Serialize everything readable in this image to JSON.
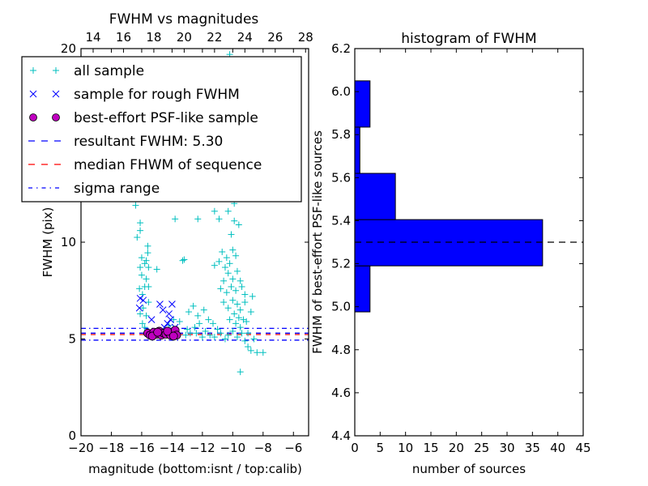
{
  "chart_data": [
    {
      "type": "scatter",
      "title": "FWHM vs magnitudes",
      "xlabel": "magnitude (bottom:isnt / top:calib)",
      "ylabel": "FWHM (pix)",
      "xlim": [
        -20,
        -5
      ],
      "ylim": [
        0,
        20
      ],
      "xticks": [
        -20,
        -18,
        -16,
        -14,
        -12,
        -10,
        -8,
        -6
      ],
      "xtick_labels": [
        "−20",
        "−18",
        "−16",
        "−14",
        "−12",
        "−10",
        "−8",
        "−6"
      ],
      "yticks": [
        0,
        5,
        10,
        20
      ],
      "ytick_labels": [
        "0",
        "5",
        "10",
        "20"
      ],
      "top_xaxis": {
        "label_offset": 33.2,
        "ticks": [
          14,
          16,
          18,
          20,
          22,
          24,
          26,
          28
        ],
        "tick_labels": [
          "14",
          "16",
          "18",
          "20",
          "22",
          "24",
          "26",
          "28"
        ]
      },
      "legend": {
        "placement": "upper-left",
        "entries": [
          {
            "label": "all sample",
            "marker": "plus",
            "color": "#00bfbf"
          },
          {
            "label": "sample for rough FWHM",
            "marker": "x",
            "color": "#0000ff"
          },
          {
            "label": "best-effort PSF-like sample",
            "marker": "circle",
            "color": "#bf00bf"
          },
          {
            "label": "resultant FWHM: 5.30",
            "linestyle": "dashed",
            "color": "#0000ff"
          },
          {
            "label": "median FHWM of sequence",
            "linestyle": "dashed",
            "color": "#ff0000"
          },
          {
            "label": "sigma range",
            "linestyle": "dashdot",
            "color": "#0000ff"
          }
        ]
      },
      "hlines": [
        {
          "name": "resultant-fwhm-line",
          "y": 5.3,
          "color": "#0000ff",
          "style": "dashed"
        },
        {
          "name": "median-fwhm-line",
          "y": 5.23,
          "color": "#ff0000",
          "style": "dashed"
        },
        {
          "name": "sigma-upper-line",
          "y": 5.55,
          "color": "#0000ff",
          "style": "dashdot"
        },
        {
          "name": "sigma-lower-line",
          "y": 4.94,
          "color": "#0000ff",
          "style": "dashdot"
        }
      ],
      "series": [
        {
          "name": "all sample",
          "marker": "plus",
          "color": "#00bfbf",
          "points": [
            [
              -10.2,
              19.7
            ],
            [
              -16.4,
              11.9
            ],
            [
              -16.1,
              11.0
            ],
            [
              -16.1,
              10.6
            ],
            [
              -16.3,
              10.25
            ],
            [
              -15.6,
              9.8
            ],
            [
              -15.6,
              9.45
            ],
            [
              -16.0,
              9.2
            ],
            [
              -15.7,
              9.05
            ],
            [
              -15.8,
              8.9
            ],
            [
              -15.55,
              8.7
            ],
            [
              -16.1,
              8.7
            ],
            [
              -16.0,
              8.3
            ],
            [
              -15.7,
              8.1
            ],
            [
              -15.8,
              7.7
            ],
            [
              -15.55,
              7.7
            ],
            [
              -16.15,
              7.6
            ],
            [
              -15.95,
              7.3
            ],
            [
              -15.55,
              6.9
            ],
            [
              -15.9,
              6.6
            ],
            [
              -16.1,
              6.3
            ],
            [
              -15.7,
              6.2
            ],
            [
              -15.95,
              5.8
            ],
            [
              -15.8,
              5.6
            ],
            [
              -13.8,
              11.2
            ],
            [
              -14.9,
              12.3
            ],
            [
              -15.0,
              8.6
            ],
            [
              -13.2,
              9.1
            ],
            [
              -13.3,
              9.05
            ],
            [
              -13.9,
              6.0
            ],
            [
              -14.2,
              5.7
            ],
            [
              -13.5,
              5.9
            ],
            [
              -13.0,
              5.5
            ],
            [
              -13.1,
              5.2
            ],
            [
              -12.8,
              5.3
            ],
            [
              -12.5,
              5.6
            ],
            [
              -12.2,
              5.8
            ],
            [
              -12.4,
              5.3
            ],
            [
              -12.0,
              5.1
            ],
            [
              -11.8,
              5.4
            ],
            [
              -12.9,
              6.4
            ],
            [
              -12.6,
              6.7
            ],
            [
              -12.3,
              6.2
            ],
            [
              -11.9,
              6.5
            ],
            [
              -11.6,
              6.0
            ],
            [
              -11.3,
              5.8
            ],
            [
              -11.0,
              5.5
            ],
            [
              -11.5,
              5.2
            ],
            [
              -11.2,
              5.1
            ],
            [
              -10.8,
              5.3
            ],
            [
              -10.5,
              5.0
            ],
            [
              -10.3,
              5.2
            ],
            [
              -10.0,
              5.4
            ],
            [
              -9.7,
              5.1
            ],
            [
              -9.4,
              5.3
            ],
            [
              -11.9,
              12.5
            ],
            [
              -11.5,
              12.8
            ],
            [
              -11.2,
              11.6
            ],
            [
              -12.3,
              11.2
            ],
            [
              -10.6,
              12.7
            ],
            [
              -10.4,
              12.3
            ],
            [
              -10.3,
              11.6
            ],
            [
              -10.9,
              11.2
            ],
            [
              -9.9,
              11.1
            ],
            [
              -10.1,
              10.4
            ],
            [
              -9.6,
              10.9
            ],
            [
              -10.7,
              9.5
            ],
            [
              -10.4,
              9.2
            ],
            [
              -10.9,
              9.0
            ],
            [
              -11.2,
              8.8
            ],
            [
              -10.5,
              8.7
            ],
            [
              -10.2,
              8.9
            ],
            [
              -10.0,
              9.6
            ],
            [
              -9.8,
              9.3
            ],
            [
              -10.3,
              8.4
            ],
            [
              -10.0,
              8.1
            ],
            [
              -10.6,
              8.0
            ],
            [
              -9.7,
              8.5
            ],
            [
              -9.5,
              8.0
            ],
            [
              -10.8,
              7.6
            ],
            [
              -10.4,
              7.4
            ],
            [
              -10.1,
              7.7
            ],
            [
              -9.8,
              7.5
            ],
            [
              -9.4,
              7.7
            ],
            [
              -9.2,
              7.3
            ],
            [
              -10.6,
              6.9
            ],
            [
              -10.3,
              6.6
            ],
            [
              -10.0,
              7.0
            ],
            [
              -9.7,
              6.8
            ],
            [
              -9.5,
              6.5
            ],
            [
              -9.2,
              6.9
            ],
            [
              -9.9,
              6.3
            ],
            [
              -9.6,
              6.1
            ],
            [
              -9.3,
              6.0
            ],
            [
              -10.2,
              6.0
            ],
            [
              -9.8,
              5.8
            ],
            [
              -9.5,
              5.6
            ],
            [
              -9.1,
              5.9
            ],
            [
              -8.8,
              6.4
            ],
            [
              -8.7,
              7.2
            ],
            [
              -9.0,
              5.3
            ],
            [
              -9.2,
              4.9
            ],
            [
              -9.0,
              4.6
            ],
            [
              -8.8,
              4.4
            ],
            [
              -8.4,
              4.3
            ],
            [
              -8.0,
              4.3
            ],
            [
              -8.6,
              5.0
            ],
            [
              -9.5,
              3.3
            ],
            [
              -10.9,
              14.2
            ],
            [
              -10.5,
              14.9
            ],
            [
              -10.2,
              16.8
            ],
            [
              -11.3,
              15.3
            ],
            [
              -11.1,
              13.5
            ],
            [
              -10.6,
              13.1
            ],
            [
              -9.9,
              12.0
            ],
            [
              -12.1,
              13.3
            ]
          ]
        },
        {
          "name": "sample for rough FWHM",
          "marker": "x",
          "color": "#0000ff",
          "points": [
            [
              -16.15,
              6.6
            ],
            [
              -16.1,
              7.1
            ],
            [
              -15.9,
              7.0
            ],
            [
              -15.35,
              6.0
            ],
            [
              -14.8,
              6.8
            ],
            [
              -14.6,
              6.5
            ],
            [
              -14.2,
              6.3
            ],
            [
              -14.0,
              6.8
            ],
            [
              -14.1,
              6.0
            ],
            [
              -14.3,
              5.8
            ],
            [
              -13.8,
              5.6
            ],
            [
              -14.5,
              5.6
            ]
          ]
        },
        {
          "name": "best-effort PSF-like sample",
          "marker": "circle",
          "color": "#bf00bf",
          "points": [
            [
              -15.6,
              5.3
            ],
            [
              -15.45,
              5.2
            ],
            [
              -15.2,
              5.35
            ],
            [
              -15.0,
              5.25
            ],
            [
              -14.85,
              5.4
            ],
            [
              -14.7,
              5.2
            ],
            [
              -14.55,
              5.3
            ],
            [
              -14.4,
              5.25
            ],
            [
              -14.25,
              5.35
            ],
            [
              -14.1,
              5.2
            ],
            [
              -13.95,
              5.3
            ],
            [
              -13.8,
              5.45
            ],
            [
              -13.7,
              5.2
            ],
            [
              -15.3,
              5.15
            ],
            [
              -14.95,
              5.35
            ],
            [
              -14.3,
              5.4
            ],
            [
              -13.9,
              5.15
            ]
          ]
        }
      ]
    },
    {
      "type": "bar",
      "orientation": "horizontal",
      "title": "histogram of FWHM",
      "xlabel": "number of sources",
      "ylabel": "FWHM of best-effort PSF-like sources",
      "xlim": [
        0,
        45
      ],
      "ylim": [
        4.4,
        6.2
      ],
      "xticks": [
        0,
        5,
        10,
        15,
        20,
        25,
        30,
        35,
        40,
        45
      ],
      "xtick_labels": [
        "0",
        "5",
        "10",
        "15",
        "20",
        "25",
        "30",
        "35",
        "40",
        "45"
      ],
      "yticks": [
        4.4,
        4.6,
        4.8,
        5.0,
        5.2,
        5.4,
        5.6,
        5.8,
        6.0,
        6.2
      ],
      "ytick_labels": [
        "4.4",
        "4.6",
        "4.8",
        "5.0",
        "5.2",
        "5.4",
        "5.6",
        "5.8",
        "6.0",
        "6.2"
      ],
      "bar_color": "#0000ff",
      "bins": [
        {
          "low": 4.976,
          "high": 5.19,
          "count": 3
        },
        {
          "low": 5.19,
          "high": 5.405,
          "count": 37
        },
        {
          "low": 5.405,
          "high": 5.62,
          "count": 8
        },
        {
          "low": 5.62,
          "high": 5.835,
          "count": 1
        },
        {
          "low": 5.835,
          "high": 6.05,
          "count": 3
        }
      ],
      "hline": {
        "name": "resultant-fwhm-line",
        "y": 5.3,
        "color": "#000000",
        "style": "dashed"
      }
    }
  ]
}
